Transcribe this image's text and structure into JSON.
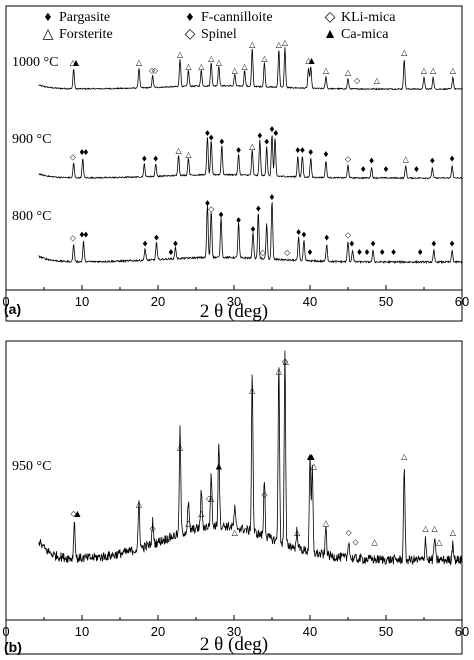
{
  "chart_data": [
    {
      "panel": "(a)",
      "type": "line",
      "xlabel": "2 θ (deg)",
      "xlim": [
        0,
        60
      ],
      "xticks": [
        0,
        10,
        20,
        30,
        40,
        50,
        60
      ],
      "legend": {
        "placement": "top",
        "entries": [
          {
            "symbol": "♦",
            "label": "Pargasite"
          },
          {
            "symbol": "♦",
            "label": "F-cannilloite"
          },
          {
            "symbol": "◇",
            "label": "KLi-mica"
          },
          {
            "symbol": "△",
            "label": "Forsterite"
          },
          {
            "symbol": "◇",
            "label": "Spinel"
          },
          {
            "symbol": "▲",
            "label": "Ca-mica"
          }
        ]
      },
      "series": [
        {
          "name": "1000 °C",
          "peaks": [
            [
              8.9,
              0.5
            ],
            [
              17.5,
              0.5
            ],
            [
              19.3,
              0.3
            ],
            [
              22.9,
              0.7
            ],
            [
              24.0,
              0.4
            ],
            [
              25.7,
              0.4
            ],
            [
              27.0,
              0.6
            ],
            [
              28.0,
              0.5
            ],
            [
              30.1,
              0.3
            ],
            [
              31.4,
              0.4
            ],
            [
              32.4,
              0.95
            ],
            [
              34.0,
              0.6
            ],
            [
              35.9,
              0.95
            ],
            [
              36.7,
              1.0
            ],
            [
              39.8,
              0.5
            ],
            [
              40.1,
              0.55
            ],
            [
              42.1,
              0.3
            ],
            [
              45.0,
              0.25
            ],
            [
              52.4,
              0.75
            ],
            [
              55.0,
              0.3
            ],
            [
              56.2,
              0.3
            ],
            [
              58.8,
              0.3
            ]
          ],
          "markers": [
            [
              "△",
              8.8
            ],
            [
              "▲",
              9.2
            ],
            [
              "△",
              17.5
            ],
            [
              "◇",
              19.2
            ],
            [
              "◇",
              19.6
            ],
            [
              "△",
              22.9
            ],
            [
              "△",
              24.0
            ],
            [
              "△",
              25.7
            ],
            [
              "△",
              27.0
            ],
            [
              "△",
              28.0
            ],
            [
              "△",
              30.1
            ],
            [
              "△",
              31.4
            ],
            [
              "△",
              32.4
            ],
            [
              "△",
              34.0
            ],
            [
              "△",
              35.9
            ],
            [
              "△",
              36.7
            ],
            [
              "△",
              39.8
            ],
            [
              "▲",
              40.2
            ],
            [
              "△",
              42.1
            ],
            [
              "△",
              45.0
            ],
            [
              "◇",
              46.2
            ],
            [
              "△",
              48.8
            ],
            [
              "△",
              52.4
            ],
            [
              "△",
              55.0
            ],
            [
              "△",
              56.2
            ],
            [
              "△",
              58.8
            ]
          ]
        },
        {
          "name": "900 °C",
          "peaks": [
            [
              8.9,
              0.35
            ],
            [
              10.1,
              0.45
            ],
            [
              18.2,
              0.3
            ],
            [
              19.7,
              0.3
            ],
            [
              22.7,
              0.5
            ],
            [
              24.0,
              0.4
            ],
            [
              26.5,
              0.9
            ],
            [
              27.0,
              0.8
            ],
            [
              28.4,
              0.7
            ],
            [
              30.6,
              0.5
            ],
            [
              32.4,
              0.6
            ],
            [
              33.4,
              0.85
            ],
            [
              34.3,
              0.7
            ],
            [
              35.0,
              1.0
            ],
            [
              35.4,
              0.9
            ],
            [
              38.4,
              0.5
            ],
            [
              39.0,
              0.5
            ],
            [
              40.1,
              0.45
            ],
            [
              42.1,
              0.4
            ],
            [
              45.0,
              0.3
            ],
            [
              48.1,
              0.25
            ],
            [
              52.6,
              0.3
            ],
            [
              56.1,
              0.25
            ],
            [
              58.7,
              0.3
            ]
          ],
          "markers": [
            [
              "◇",
              8.8
            ],
            [
              "♦",
              10.0
            ],
            [
              "♦",
              10.5
            ],
            [
              "♦",
              18.2
            ],
            [
              "♦",
              19.7
            ],
            [
              "△",
              22.7
            ],
            [
              "△",
              24.0
            ],
            [
              "♦",
              26.5
            ],
            [
              "♦",
              27.0
            ],
            [
              "♦",
              28.4
            ],
            [
              "♦",
              30.6
            ],
            [
              "△",
              32.4
            ],
            [
              "♦",
              33.4
            ],
            [
              "♦",
              34.3
            ],
            [
              "♦",
              35.0
            ],
            [
              "♦",
              35.5
            ],
            [
              "♦",
              38.4
            ],
            [
              "♦",
              39.0
            ],
            [
              "♦",
              40.1
            ],
            [
              "♦",
              42.1
            ],
            [
              "◇",
              45.0
            ],
            [
              "♦",
              47.0
            ],
            [
              "♦",
              48.1
            ],
            [
              "♦",
              50.0
            ],
            [
              "△",
              52.6
            ],
            [
              "♦",
              54.0
            ],
            [
              "♦",
              56.1
            ],
            [
              "♦",
              58.7
            ]
          ]
        },
        {
          "name": "800 °C",
          "peaks": [
            [
              8.9,
              0.3
            ],
            [
              10.2,
              0.35
            ],
            [
              18.3,
              0.2
            ],
            [
              19.8,
              0.3
            ],
            [
              22.3,
              0.2
            ],
            [
              26.5,
              0.9
            ],
            [
              27.0,
              0.8
            ],
            [
              28.3,
              0.7
            ],
            [
              30.6,
              0.6
            ],
            [
              32.5,
              0.45
            ],
            [
              33.2,
              0.8
            ],
            [
              34.3,
              0.6
            ],
            [
              35.0,
              1.0
            ],
            [
              38.5,
              0.4
            ],
            [
              39.2,
              0.35
            ],
            [
              42.2,
              0.3
            ],
            [
              45.0,
              0.35
            ],
            [
              45.6,
              0.2
            ],
            [
              48.3,
              0.2
            ],
            [
              56.3,
              0.2
            ],
            [
              58.7,
              0.2
            ]
          ],
          "markers": [
            [
              "◇",
              8.8
            ],
            [
              "♦",
              10.0
            ],
            [
              "♦",
              10.5
            ],
            [
              "♦",
              18.3
            ],
            [
              "♦",
              19.8
            ],
            [
              "♦",
              21.7
            ],
            [
              "♦",
              22.3
            ],
            [
              "♦",
              26.5
            ],
            [
              "◇",
              27.0
            ],
            [
              "♦",
              28.3
            ],
            [
              "♦",
              30.6
            ],
            [
              "♦",
              32.5
            ],
            [
              "♦",
              33.2
            ],
            [
              "◇",
              33.8
            ],
            [
              "♦",
              35.0
            ],
            [
              "◇",
              37.0
            ],
            [
              "♦",
              38.5
            ],
            [
              "♦",
              39.2
            ],
            [
              "♦",
              40.0
            ],
            [
              "♦",
              42.2
            ],
            [
              "◇",
              45.0
            ],
            [
              "♦",
              45.5
            ],
            [
              "♦",
              46.5
            ],
            [
              "♦",
              47.5
            ],
            [
              "♦",
              48.3
            ],
            [
              "♦",
              49.5
            ],
            [
              "♦",
              51.0
            ],
            [
              "♦",
              54.5
            ],
            [
              "♦",
              56.3
            ],
            [
              "♦",
              58.7
            ]
          ]
        }
      ]
    },
    {
      "panel": "(b)",
      "type": "line",
      "xlabel": "2 θ (deg)",
      "xlim": [
        0,
        60
      ],
      "xticks": [
        0,
        10,
        20,
        30,
        40,
        50,
        60
      ],
      "series": [
        {
          "name": "950 °C",
          "peaks": [
            [
              9.0,
              0.2
            ],
            [
              17.5,
              0.25
            ],
            [
              19.3,
              0.12
            ],
            [
              22.9,
              0.55
            ],
            [
              24.0,
              0.15
            ],
            [
              25.7,
              0.2
            ],
            [
              27.0,
              0.28
            ],
            [
              28.0,
              0.45
            ],
            [
              30.1,
              0.1
            ],
            [
              32.4,
              0.85
            ],
            [
              34.0,
              0.3
            ],
            [
              35.9,
              0.95
            ],
            [
              36.7,
              1.0
            ],
            [
              38.3,
              0.1
            ],
            [
              40.0,
              0.5
            ],
            [
              40.3,
              0.45
            ],
            [
              42.1,
              0.15
            ],
            [
              45.1,
              0.1
            ],
            [
              52.4,
              0.5
            ],
            [
              55.2,
              0.12
            ],
            [
              56.4,
              0.12
            ],
            [
              58.8,
              0.1
            ]
          ],
          "markers": [
            [
              "◇",
              8.9
            ],
            [
              "▲",
              9.4
            ],
            [
              "△",
              17.5
            ],
            [
              "◇",
              19.3
            ],
            [
              "△",
              22.9
            ],
            [
              "△",
              24.0
            ],
            [
              "△",
              25.7
            ],
            [
              "◇",
              26.7
            ],
            [
              "△",
              27.0
            ],
            [
              "▲",
              28.0
            ],
            [
              "△",
              30.1
            ],
            [
              "△",
              32.4
            ],
            [
              "◇",
              34.0
            ],
            [
              "△",
              35.9
            ],
            [
              "◇",
              36.7
            ],
            [
              "△",
              36.8
            ],
            [
              "△",
              38.3
            ],
            [
              "▲",
              40.0
            ],
            [
              "▲",
              40.2
            ],
            [
              "△",
              40.5
            ],
            [
              "△",
              42.1
            ],
            [
              "◇",
              45.1
            ],
            [
              "◇",
              46.0
            ],
            [
              "△",
              48.5
            ],
            [
              "△",
              52.4
            ],
            [
              "△",
              55.2
            ],
            [
              "△",
              56.4
            ],
            [
              "△",
              57.0
            ],
            [
              "△",
              58.8
            ]
          ]
        }
      ]
    }
  ]
}
